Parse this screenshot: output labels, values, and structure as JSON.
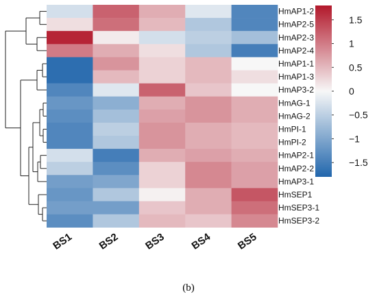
{
  "figure": {
    "caption": "(b)"
  },
  "chart_data": {
    "type": "heatmap",
    "rows": [
      "HmAP1-2",
      "HmAP2-5",
      "HmAP2-3",
      "HmAP2-4",
      "HmAP1-1",
      "HmAP1-3",
      "HmAP3-2",
      "HmAG-1",
      "HmAG-2",
      "HmPI-1",
      "HmPI-2",
      "HmAP2-1",
      "HmAP2-2",
      "HmAP3-1",
      "HmSEP1",
      "HmSEP3-1",
      "HmSEP3-2"
    ],
    "columns": [
      "BS1",
      "BS2",
      "BS3",
      "BS4",
      "BS5"
    ],
    "values": [
      [
        -0.3,
        1.2,
        0.6,
        -0.2,
        -1.4
      ],
      [
        0.2,
        1.1,
        0.5,
        -0.6,
        -1.4
      ],
      [
        1.7,
        0.1,
        -0.3,
        -0.5,
        -0.7
      ],
      [
        1.0,
        0.6,
        0.2,
        -0.6,
        -1.5
      ],
      [
        -1.7,
        0.8,
        0.3,
        0.5,
        0.0
      ],
      [
        -1.7,
        0.5,
        0.3,
        0.5,
        0.2
      ],
      [
        -1.4,
        -0.2,
        1.2,
        0.4,
        0.0
      ],
      [
        -1.2,
        -0.9,
        0.6,
        0.8,
        0.6
      ],
      [
        -1.3,
        -0.7,
        0.7,
        0.8,
        0.6
      ],
      [
        -1.4,
        -0.5,
        0.8,
        0.6,
        0.5
      ],
      [
        -1.4,
        -0.6,
        0.8,
        0.6,
        0.5
      ],
      [
        -0.3,
        -1.5,
        0.6,
        0.7,
        0.6
      ],
      [
        -0.5,
        -1.3,
        0.3,
        0.9,
        0.7
      ],
      [
        -1.1,
        -1.0,
        0.3,
        0.9,
        0.7
      ],
      [
        -1.2,
        -0.6,
        0.05,
        0.6,
        1.3
      ],
      [
        -1.1,
        -1.1,
        0.4,
        0.6,
        1.1
      ],
      [
        -1.3,
        -0.6,
        0.5,
        0.4,
        0.9
      ]
    ],
    "colorbar": {
      "ticks": [
        "1.5",
        "1",
        "0.5",
        "0",
        "−0.5",
        "−1",
        "−1.5"
      ],
      "tick_values": [
        1.5,
        1,
        0.5,
        0,
        -0.5,
        -1,
        -1.5
      ],
      "range": [
        -1.8,
        1.8
      ],
      "colors": {
        "low": "#2166ac",
        "mid": "#f7f7f7",
        "high": "#b2182b"
      }
    },
    "dendrogram": "row clustering tree on left",
    "legend_position": "right"
  }
}
